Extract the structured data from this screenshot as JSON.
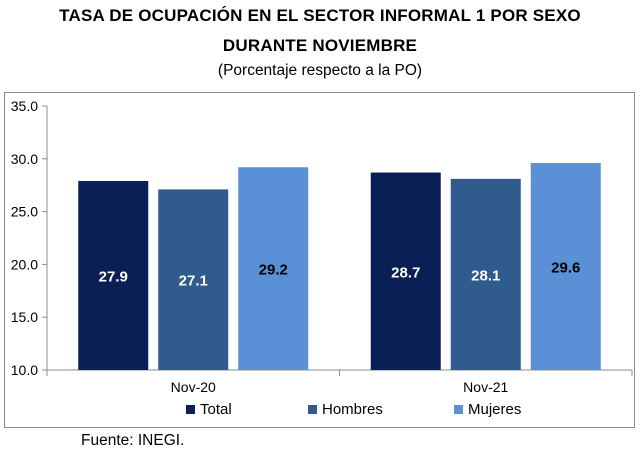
{
  "title_line1": "Tasa de ocupación en el sector informal 1 por sexo",
  "title_line2": "durante noviembre",
  "subtitle": "(Porcentaje respecto a la PO)",
  "source": "Fuente: INEGI.",
  "colors": {
    "Total": "#0b1f57",
    "Hombres": "#2f5b8f",
    "Mujeres": "#5a91d6"
  },
  "chart_data": {
    "type": "bar",
    "categories": [
      "Nov-20",
      "Nov-21"
    ],
    "series": [
      {
        "name": "Total",
        "values": [
          27.9,
          28.7
        ]
      },
      {
        "name": "Hombres",
        "values": [
          27.1,
          28.1
        ]
      },
      {
        "name": "Mujeres",
        "values": [
          29.2,
          29.6
        ]
      }
    ],
    "ylim": [
      10.0,
      35.0
    ],
    "yticks": [
      "35.0",
      "30.0",
      "25.0",
      "20.0",
      "15.0",
      "10.0"
    ],
    "grid": false,
    "legend": "bottom",
    "data_labels": true
  }
}
